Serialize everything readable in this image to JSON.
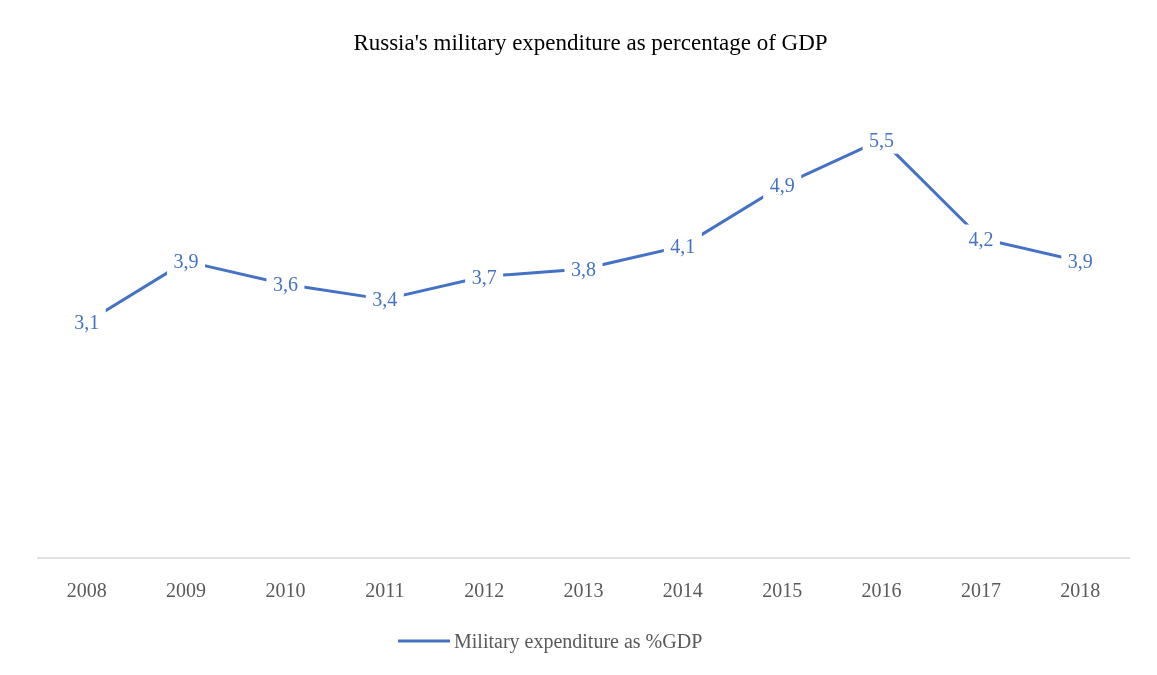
{
  "chart_data": {
    "type": "line",
    "title": "Russia's military expenditure as percentage of GDP",
    "categories": [
      "2008",
      "2009",
      "2010",
      "2011",
      "2012",
      "2013",
      "2014",
      "2015",
      "2016",
      "2017",
      "2018"
    ],
    "series": [
      {
        "name": "Military expenditure as %GDP",
        "color": "#4472c4",
        "values": [
          3.1,
          3.9,
          3.6,
          3.4,
          3.7,
          3.8,
          4.1,
          4.9,
          5.5,
          4.2,
          3.9
        ],
        "value_labels": [
          "3,1",
          "3,9",
          "3,6",
          "3,4",
          "3,7",
          "3,8",
          "4,1",
          "4,9",
          "5,5",
          "4,2",
          "3,9"
        ]
      }
    ],
    "legend": "bottom",
    "marker": "none",
    "line_style": "solid"
  }
}
